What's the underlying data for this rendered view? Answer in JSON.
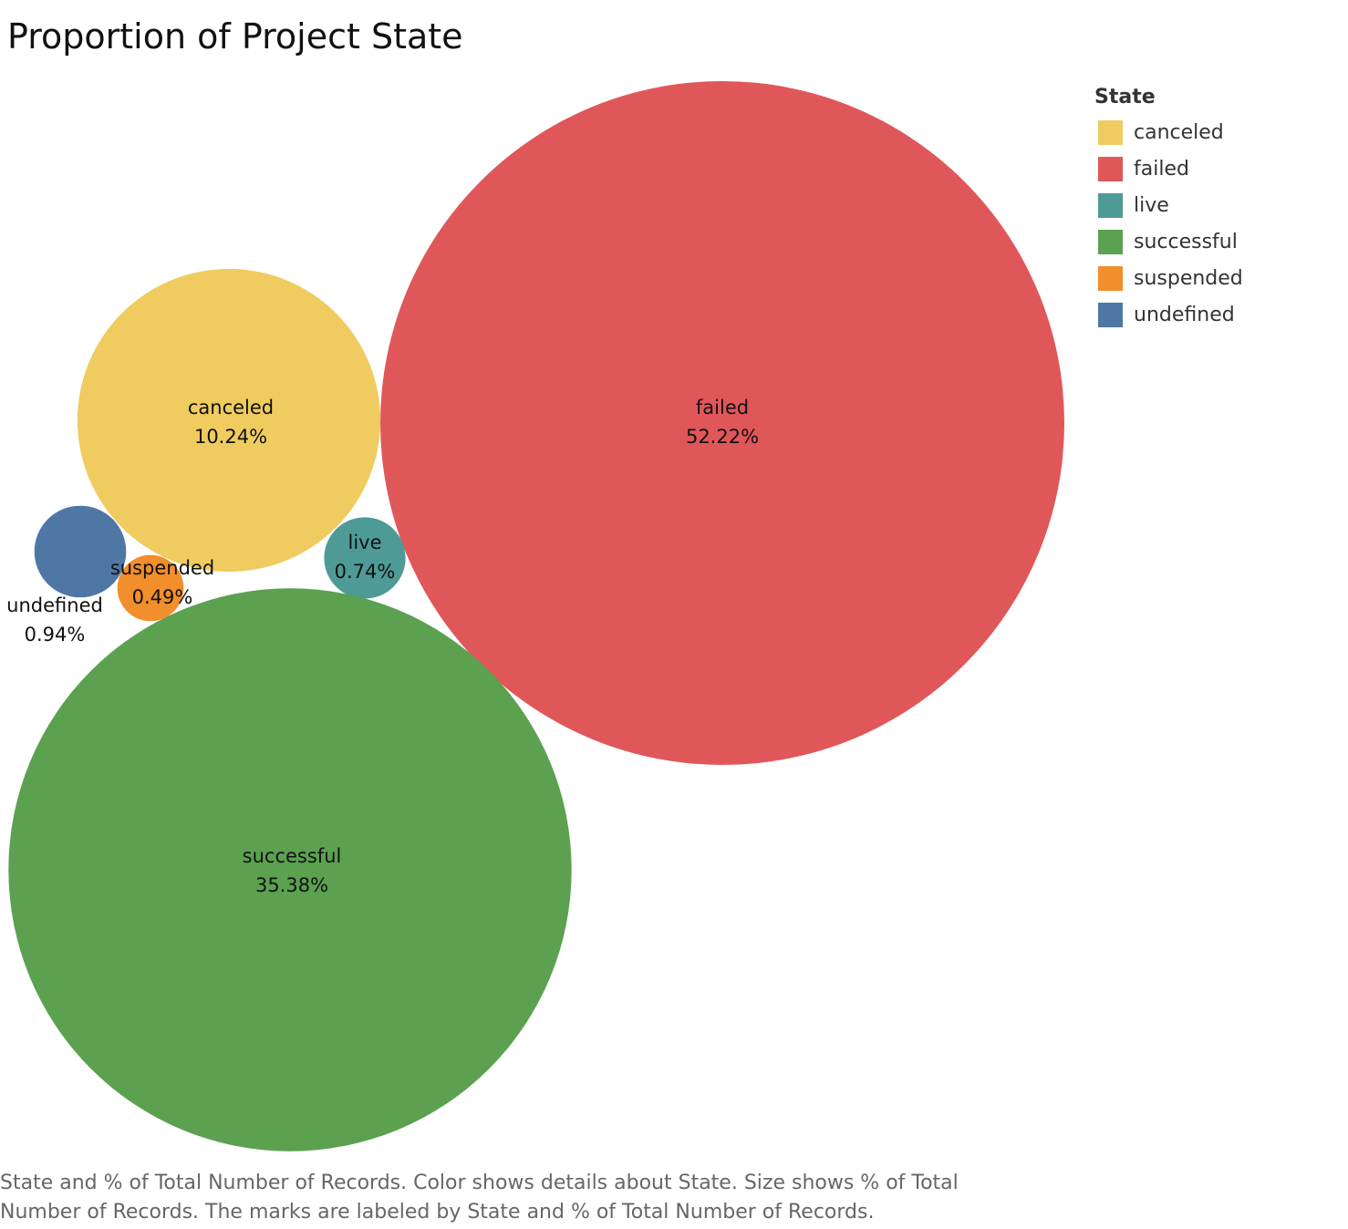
{
  "chart_data": {
    "type": "bubble",
    "title": "Proportion of Project State",
    "size_measure": "% of Total Number of Records",
    "color_dimension": "State",
    "legend": {
      "title": "State",
      "placement": "top-right",
      "items": [
        {
          "label": "canceled",
          "color": "#EFCB60"
        },
        {
          "label": "failed",
          "color": "#E0575A"
        },
        {
          "label": "live",
          "color": "#4E9A96"
        },
        {
          "label": "successful",
          "color": "#5BA150"
        },
        {
          "label": "suspended",
          "color": "#F28E2C"
        },
        {
          "label": "undefined",
          "color": "#4E77A5"
        }
      ]
    },
    "points": [
      {
        "state": "canceled",
        "value": 10.24,
        "value_label": "10.24%",
        "color": "#EFCB60"
      },
      {
        "state": "failed",
        "value": 52.22,
        "value_label": "52.22%",
        "color": "#E0575A"
      },
      {
        "state": "live",
        "value": 0.74,
        "value_label": "0.74%",
        "color": "#4E9A96"
      },
      {
        "state": "successful",
        "value": 35.38,
        "value_label": "35.38%",
        "color": "#5BA150"
      },
      {
        "state": "suspended",
        "value": 0.49,
        "value_label": "0.49%",
        "color": "#F28E2C"
      },
      {
        "state": "undefined",
        "value": 0.94,
        "value_label": "0.94%",
        "color": "#4E77A5"
      }
    ],
    "caption": "State and % of Total Number of Records.  Color shows details about State.  Size shows % of Total Number of Records.  The marks are labeled by State and % of Total Number of Records."
  }
}
